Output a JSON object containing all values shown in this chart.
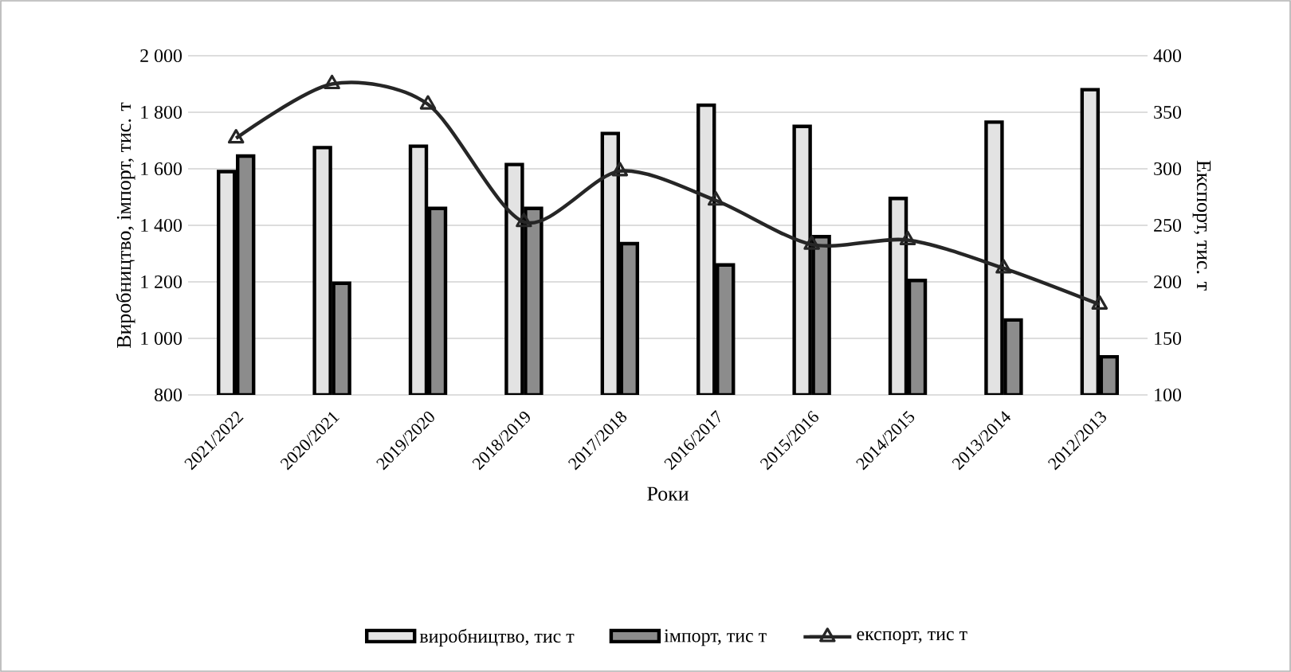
{
  "chart_data": {
    "type": "bar",
    "xlabel": "Роки",
    "ylabel": "Виробництво, імпорт, тис. т",
    "y2label": "Експорт, тис. т",
    "categories": [
      "2021/2022",
      "2020/2021",
      "2019/2020",
      "2018/2019",
      "2017/2018",
      "2016/2017",
      "2015/2016",
      "2014/2015",
      "2013/2014",
      "2012/2013"
    ],
    "series": [
      {
        "name": "виробництво, тис т",
        "type": "bar",
        "color": "#e3e3e3",
        "values": [
          1590,
          1675,
          1680,
          1615,
          1725,
          1825,
          1750,
          1495,
          1765,
          1880
        ]
      },
      {
        "name": "імпорт, тис т",
        "type": "bar",
        "color": "#8c8c8c",
        "values": [
          1645,
          1195,
          1460,
          1460,
          1335,
          1260,
          1360,
          1205,
          1065,
          935
        ]
      },
      {
        "name": "експорт, тис т",
        "type": "line",
        "axis": "y2",
        "color": "#262626",
        "marker": "triangle",
        "values": [
          327,
          375,
          357,
          253,
          298,
          272,
          233,
          237,
          212,
          180
        ]
      }
    ],
    "ylim": [
      800,
      2000
    ],
    "yticks": [
      {
        "value": 800,
        "label": "800"
      },
      {
        "value": 1000,
        "label": "1 000"
      },
      {
        "value": 1200,
        "label": "1 200"
      },
      {
        "value": 1400,
        "label": "1 400"
      },
      {
        "value": 1600,
        "label": "1 600"
      },
      {
        "value": 1800,
        "label": "1 800"
      },
      {
        "value": 2000,
        "label": "2 000"
      }
    ],
    "y2lim": [
      100,
      400
    ],
    "y2ticks": [
      100,
      150,
      200,
      250,
      300,
      350,
      400
    ],
    "grid": "y",
    "legend": "bottom"
  }
}
